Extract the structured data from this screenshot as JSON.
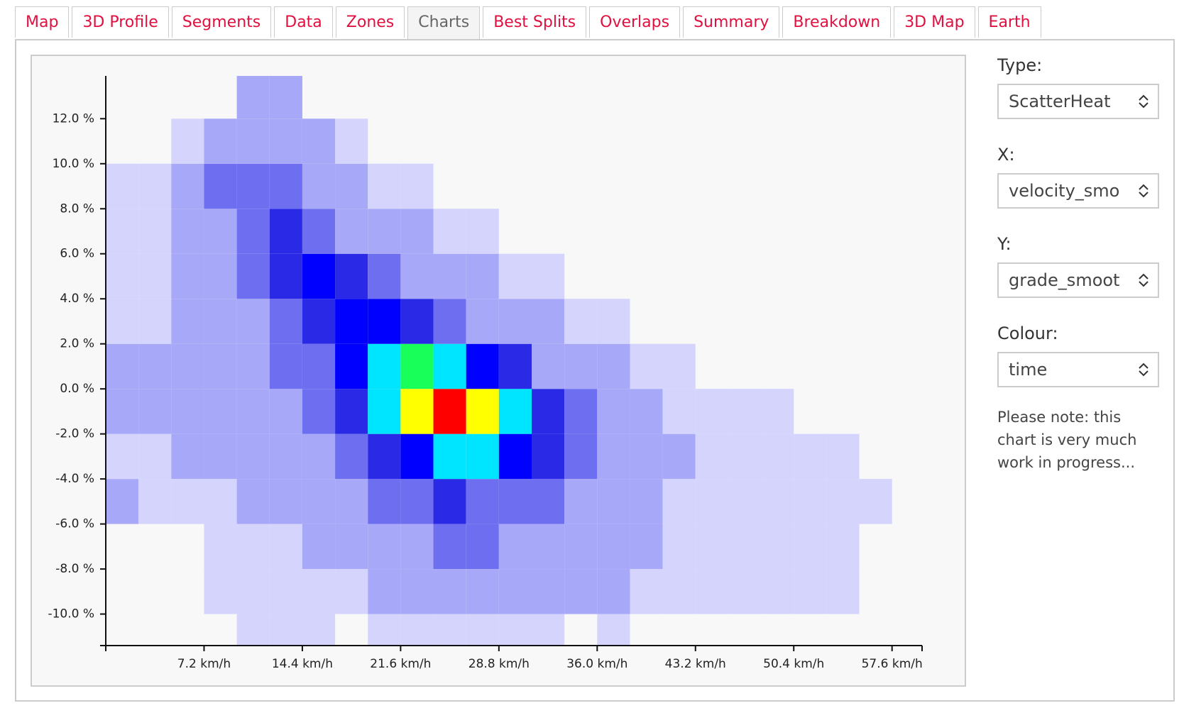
{
  "tabs": [
    {
      "label": "Map"
    },
    {
      "label": "3D Profile"
    },
    {
      "label": "Segments"
    },
    {
      "label": "Data"
    },
    {
      "label": "Zones"
    },
    {
      "label": "Charts",
      "active": true
    },
    {
      "label": "Best Splits"
    },
    {
      "label": "Overlaps"
    },
    {
      "label": "Summary"
    },
    {
      "label": "Breakdown"
    },
    {
      "label": "3D Map"
    },
    {
      "label": "Earth"
    }
  ],
  "controls": [
    {
      "label": "Type:",
      "value": "ScatterHeat"
    },
    {
      "label": "X:",
      "value": "velocity_smo"
    },
    {
      "label": "Y:",
      "value": "grade_smoot"
    },
    {
      "label": "Colour:",
      "value": "time"
    }
  ],
  "note": "Please note: this chart is very much work in progress...",
  "chart_data": {
    "type": "heatmap",
    "xbins": [
      0,
      2.4,
      4.8,
      7.2,
      9.6,
      12,
      14.4,
      16.8,
      19.2,
      21.6,
      24,
      26.4,
      28.8,
      31.2,
      33.6,
      36,
      38.4,
      40.8,
      43.2,
      45.6,
      48,
      50.4,
      52.8,
      55.2,
      57.6
    ],
    "ybins": [
      -12,
      -10,
      -8,
      -6,
      -4,
      -2,
      0,
      2,
      4,
      6,
      8,
      10,
      12,
      14
    ],
    "values": [
      [
        0,
        0,
        0,
        0,
        1,
        1,
        1,
        0,
        1,
        1,
        1,
        1,
        1,
        1,
        0,
        1,
        0,
        0,
        0,
        0,
        0,
        0,
        0,
        0
      ],
      [
        0,
        0,
        0,
        1,
        1,
        1,
        1,
        1,
        2,
        2,
        2,
        3,
        3,
        3,
        2,
        2,
        1,
        1,
        1,
        1,
        1,
        1,
        1,
        0
      ],
      [
        0,
        0,
        0,
        1,
        1,
        1,
        2,
        3,
        4,
        6,
        7,
        7,
        6,
        5,
        4,
        3,
        2,
        1,
        1,
        1,
        1,
        1,
        1,
        0
      ],
      [
        2,
        1,
        1,
        1,
        2,
        3,
        4,
        6,
        10,
        14,
        15,
        14,
        12,
        10,
        6,
        4,
        2,
        1,
        1,
        1,
        1,
        1,
        1,
        1
      ],
      [
        1,
        1,
        2,
        2,
        3,
        4,
        6,
        10,
        20,
        35,
        45,
        40,
        30,
        20,
        10,
        5,
        3,
        2,
        1,
        1,
        1,
        1,
        1,
        0
      ],
      [
        2,
        2,
        2,
        3,
        4,
        6,
        10,
        20,
        50,
        85,
        100,
        80,
        45,
        20,
        8,
        4,
        2,
        1,
        1,
        1,
        1,
        0,
        0,
        0
      ],
      [
        2,
        2,
        2,
        3,
        5,
        8,
        14,
        30,
        55,
        65,
        55,
        35,
        15,
        6,
        3,
        2,
        1,
        1,
        0,
        0,
        0,
        0,
        0,
        0
      ],
      [
        1,
        1,
        2,
        3,
        6,
        12,
        22,
        35,
        30,
        20,
        10,
        5,
        3,
        2,
        1,
        1,
        0,
        0,
        0,
        0,
        0,
        0,
        0,
        0
      ],
      [
        1,
        1,
        2,
        4,
        10,
        18,
        25,
        20,
        12,
        6,
        3,
        2,
        1,
        1,
        0,
        0,
        0,
        0,
        0,
        0,
        0,
        0,
        0,
        0
      ],
      [
        1,
        1,
        3,
        6,
        12,
        15,
        10,
        6,
        3,
        2,
        1,
        1,
        0,
        0,
        0,
        0,
        0,
        0,
        0,
        0,
        0,
        0,
        0,
        0
      ],
      [
        1,
        1,
        2,
        8,
        10,
        8,
        4,
        2,
        1,
        1,
        0,
        0,
        0,
        0,
        0,
        0,
        0,
        0,
        0,
        0,
        0,
        0,
        0,
        0
      ],
      [
        0,
        0,
        1,
        3,
        4,
        3,
        2,
        1,
        0,
        0,
        0,
        0,
        0,
        0,
        0,
        0,
        0,
        0,
        0,
        0,
        0,
        0,
        0,
        0
      ],
      [
        0,
        0,
        0,
        0,
        2,
        2,
        0,
        0,
        0,
        0,
        0,
        0,
        0,
        0,
        0,
        0,
        0,
        0,
        0,
        0,
        0,
        0,
        0,
        0
      ]
    ],
    "colors": [
      "#d4d4fc",
      "#a8a8f8",
      "#6e6ef0",
      "#2a2ae6",
      "#0000ff",
      "#00e5ff",
      "#19ff5a",
      "#ffff00",
      "#ff0000"
    ],
    "xlim": [
      0,
      59.8
    ],
    "ylim": [
      -11.4,
      13.9
    ],
    "xticks": [
      {
        "value": 7.2,
        "label": "7.2 km/h"
      },
      {
        "value": 14.4,
        "label": "14.4 km/h"
      },
      {
        "value": 21.6,
        "label": "21.6 km/h"
      },
      {
        "value": 28.8,
        "label": "28.8 km/h"
      },
      {
        "value": 36,
        "label": "36.0 km/h"
      },
      {
        "value": 43.2,
        "label": "43.2 km/h"
      },
      {
        "value": 50.4,
        "label": "50.4 km/h"
      },
      {
        "value": 57.6,
        "label": "57.6 km/h"
      }
    ],
    "yticks": [
      {
        "value": -10,
        "label": "-10.0 %"
      },
      {
        "value": -8,
        "label": "-8.0 %"
      },
      {
        "value": -6,
        "label": "-6.0 %"
      },
      {
        "value": -4,
        "label": "-4.0 %"
      },
      {
        "value": -2,
        "label": "-2.0 %"
      },
      {
        "value": 0,
        "label": "0.0 %"
      },
      {
        "value": 2,
        "label": "2.0 %"
      },
      {
        "value": 4,
        "label": "4.0 %"
      },
      {
        "value": 6,
        "label": "6.0 %"
      },
      {
        "value": 8,
        "label": "8.0 %"
      },
      {
        "value": 10,
        "label": "10.0 %"
      },
      {
        "value": 12,
        "label": "12.0 %"
      }
    ]
  }
}
